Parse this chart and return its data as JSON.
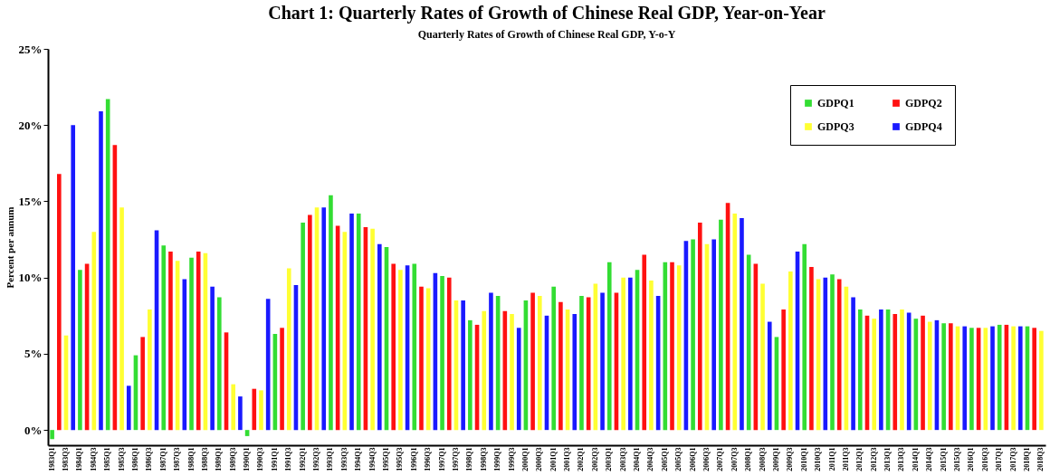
{
  "chart_data": {
    "type": "bar",
    "title": "Chart 1: Quarterly Rates of Growth of Chinese Real GDP, Year-on-Year",
    "subtitle": "Quarterly  Rates of Growth  of Chinese  Real GDP, Y-o-Y",
    "ylabel": "Percent per annum",
    "categories": [
      "1983Q1",
      null,
      "1983Q3",
      null,
      "1984Q1",
      null,
      "1984Q3",
      null,
      "1985Q1",
      null,
      "1985Q3",
      null,
      "1986Q1",
      null,
      "1986Q3",
      null,
      "1987Q1",
      null,
      "1987Q3",
      null,
      "1988Q1",
      null,
      "1988Q3",
      null,
      "1989Q1",
      null,
      "1989Q3",
      null,
      "1990Q1",
      null,
      "1990Q3",
      null,
      "1991Q1",
      null,
      "1991Q3",
      null,
      "1992Q1",
      null,
      "1992Q3",
      null,
      "1993Q1",
      null,
      "1993Q3",
      null,
      "1994Q1",
      null,
      "1994Q3",
      null,
      "1995Q1",
      null,
      "1995Q3",
      null,
      "1996Q1",
      null,
      "1996Q3",
      null,
      "1997Q1",
      null,
      "1997Q3",
      null,
      "1998Q1",
      null,
      "1998Q3",
      null,
      "1999Q1",
      null,
      "1999Q3",
      null,
      "2000Q1",
      null,
      "2000Q3",
      null,
      "2001Q1",
      null,
      "2001Q3",
      null,
      "2002Q1",
      null,
      "2002Q3",
      null,
      "2003Q1",
      null,
      "2003Q3",
      null,
      "2004Q1",
      null,
      "2004Q3",
      null,
      "2005Q1",
      null,
      "2005Q3",
      null,
      "2006Q1",
      null,
      "2006Q3",
      null,
      "2007Q1",
      null,
      "2007Q3",
      null,
      "2008Q1",
      null,
      "2008Q3",
      null,
      "2009Q1",
      null,
      "2009Q3",
      null,
      "2010Q1",
      null,
      "2010Q3",
      null,
      "2011Q1",
      null,
      "2011Q3",
      null,
      "2012Q1",
      null,
      "2012Q3",
      null,
      "2013Q1",
      null,
      "2013Q3",
      null,
      "2014Q1",
      null,
      "2014Q3",
      null,
      "2015Q1",
      null,
      "2015Q3",
      null,
      "2016Q1",
      null,
      "2016Q3",
      null,
      "2017Q1",
      null,
      "2017Q3",
      null,
      "2018Q1",
      null,
      "2018Q3"
    ],
    "series": [
      {
        "name": "GDPQ1",
        "color": "#33dd33",
        "values": [
          -0.6,
          null,
          null,
          null,
          10.5,
          null,
          null,
          null,
          21.7,
          null,
          null,
          null,
          4.9,
          null,
          null,
          null,
          12.1,
          null,
          null,
          null,
          11.3,
          null,
          null,
          null,
          8.7,
          null,
          null,
          null,
          -0.4,
          null,
          null,
          null,
          6.3,
          null,
          null,
          null,
          13.6,
          null,
          null,
          null,
          15.4,
          null,
          null,
          null,
          14.2,
          null,
          null,
          null,
          12.0,
          null,
          null,
          null,
          10.9,
          null,
          null,
          null,
          10.1,
          null,
          null,
          null,
          7.2,
          null,
          null,
          null,
          8.8,
          null,
          null,
          null,
          8.5,
          null,
          null,
          null,
          9.4,
          null,
          null,
          null,
          8.8,
          null,
          null,
          null,
          11.0,
          null,
          null,
          null,
          10.5,
          null,
          null,
          null,
          11.0,
          null,
          null,
          null,
          12.5,
          null,
          null,
          null,
          13.8,
          null,
          null,
          null,
          11.5,
          null,
          null,
          null,
          6.1,
          null,
          null,
          null,
          12.2,
          null,
          null,
          null,
          10.2,
          null,
          null,
          null,
          7.9,
          null,
          null,
          null,
          7.9,
          null,
          null,
          null,
          7.3,
          null,
          null,
          null,
          7.0,
          null,
          null,
          null,
          6.7,
          null,
          null,
          null,
          6.9,
          null,
          null,
          null,
          6.8,
          null,
          null
        ]
      },
      {
        "name": "GDPQ2",
        "color": "#ff1111",
        "values": [
          null,
          16.8,
          null,
          null,
          null,
          10.9,
          null,
          null,
          null,
          18.7,
          null,
          null,
          null,
          6.1,
          null,
          null,
          null,
          11.7,
          null,
          null,
          null,
          11.7,
          null,
          null,
          null,
          6.4,
          null,
          null,
          null,
          2.7,
          null,
          null,
          null,
          6.7,
          null,
          null,
          null,
          14.1,
          null,
          null,
          null,
          13.4,
          null,
          null,
          null,
          13.3,
          null,
          null,
          null,
          10.9,
          null,
          null,
          null,
          9.4,
          null,
          null,
          null,
          10.0,
          null,
          null,
          null,
          6.9,
          null,
          null,
          null,
          7.8,
          null,
          null,
          null,
          9.0,
          null,
          null,
          null,
          8.4,
          null,
          null,
          null,
          8.7,
          null,
          null,
          null,
          9.0,
          null,
          null,
          null,
          11.5,
          null,
          null,
          null,
          11.0,
          null,
          null,
          null,
          13.6,
          null,
          null,
          null,
          14.9,
          null,
          null,
          null,
          10.9,
          null,
          null,
          null,
          7.9,
          null,
          null,
          null,
          10.7,
          null,
          null,
          null,
          9.9,
          null,
          null,
          null,
          7.5,
          null,
          null,
          null,
          7.6,
          null,
          null,
          null,
          7.5,
          null,
          null,
          null,
          7.0,
          null,
          null,
          null,
          6.7,
          null,
          null,
          null,
          6.9,
          null,
          null,
          null,
          6.7,
          null
        ]
      },
      {
        "name": "GDPQ3",
        "color": "#ffff33",
        "values": [
          null,
          null,
          6.2,
          null,
          null,
          null,
          13.0,
          null,
          null,
          null,
          14.6,
          null,
          null,
          null,
          7.9,
          null,
          null,
          null,
          11.1,
          null,
          null,
          null,
          11.6,
          null,
          null,
          null,
          3.0,
          null,
          null,
          null,
          2.6,
          null,
          null,
          null,
          10.6,
          null,
          null,
          null,
          14.6,
          null,
          null,
          null,
          13.0,
          null,
          null,
          null,
          13.2,
          null,
          null,
          null,
          10.5,
          null,
          null,
          null,
          9.3,
          null,
          null,
          null,
          8.5,
          null,
          null,
          null,
          7.8,
          null,
          null,
          null,
          7.6,
          null,
          null,
          null,
          8.8,
          null,
          null,
          null,
          7.9,
          null,
          null,
          null,
          9.6,
          null,
          null,
          null,
          10.0,
          null,
          null,
          null,
          9.8,
          null,
          null,
          null,
          10.8,
          null,
          null,
          null,
          12.2,
          null,
          null,
          null,
          14.2,
          null,
          null,
          null,
          9.6,
          null,
          null,
          null,
          10.4,
          null,
          null,
          null,
          9.9,
          null,
          null,
          null,
          9.4,
          null,
          null,
          null,
          7.3,
          null,
          null,
          null,
          7.9,
          null,
          null,
          null,
          7.1,
          null,
          null,
          null,
          6.8,
          null,
          null,
          null,
          6.7,
          null,
          null,
          null,
          6.8,
          null,
          null,
          null,
          6.5
        ]
      },
      {
        "name": "GDPQ4",
        "color": "#1a1aff",
        "values": [
          null,
          null,
          null,
          20.0,
          null,
          null,
          null,
          20.9,
          null,
          null,
          null,
          2.9,
          null,
          null,
          null,
          13.1,
          null,
          null,
          null,
          9.9,
          null,
          null,
          null,
          9.4,
          null,
          null,
          null,
          2.2,
          null,
          null,
          null,
          8.6,
          null,
          null,
          null,
          9.5,
          null,
          null,
          null,
          14.6,
          null,
          null,
          null,
          14.2,
          null,
          null,
          null,
          12.2,
          null,
          null,
          null,
          10.8,
          null,
          null,
          null,
          10.3,
          null,
          null,
          null,
          8.5,
          null,
          null,
          null,
          9.0,
          null,
          null,
          null,
          6.7,
          null,
          null,
          null,
          7.5,
          null,
          null,
          null,
          7.6,
          null,
          null,
          null,
          9.0,
          null,
          null,
          null,
          10.0,
          null,
          null,
          null,
          8.8,
          null,
          null,
          null,
          12.4,
          null,
          null,
          null,
          12.5,
          null,
          null,
          null,
          13.9,
          null,
          null,
          null,
          7.1,
          null,
          null,
          null,
          11.7,
          null,
          null,
          null,
          10.0,
          null,
          null,
          null,
          8.7,
          null,
          null,
          null,
          7.9,
          null,
          null,
          null,
          7.7,
          null,
          null,
          null,
          7.2,
          null,
          null,
          null,
          6.8,
          null,
          null,
          null,
          6.8,
          null,
          null,
          null,
          6.8,
          null,
          null,
          null
        ]
      }
    ],
    "ylim": [
      -1,
      25
    ],
    "yticks": [
      {
        "value": 0,
        "label": "0%"
      },
      {
        "value": 5,
        "label": "5%"
      },
      {
        "value": 10,
        "label": "10%"
      },
      {
        "value": 15,
        "label": "15%"
      },
      {
        "value": 20,
        "label": "20%"
      },
      {
        "value": 25,
        "label": "25%"
      }
    ],
    "grid": false,
    "legend": "top right"
  }
}
